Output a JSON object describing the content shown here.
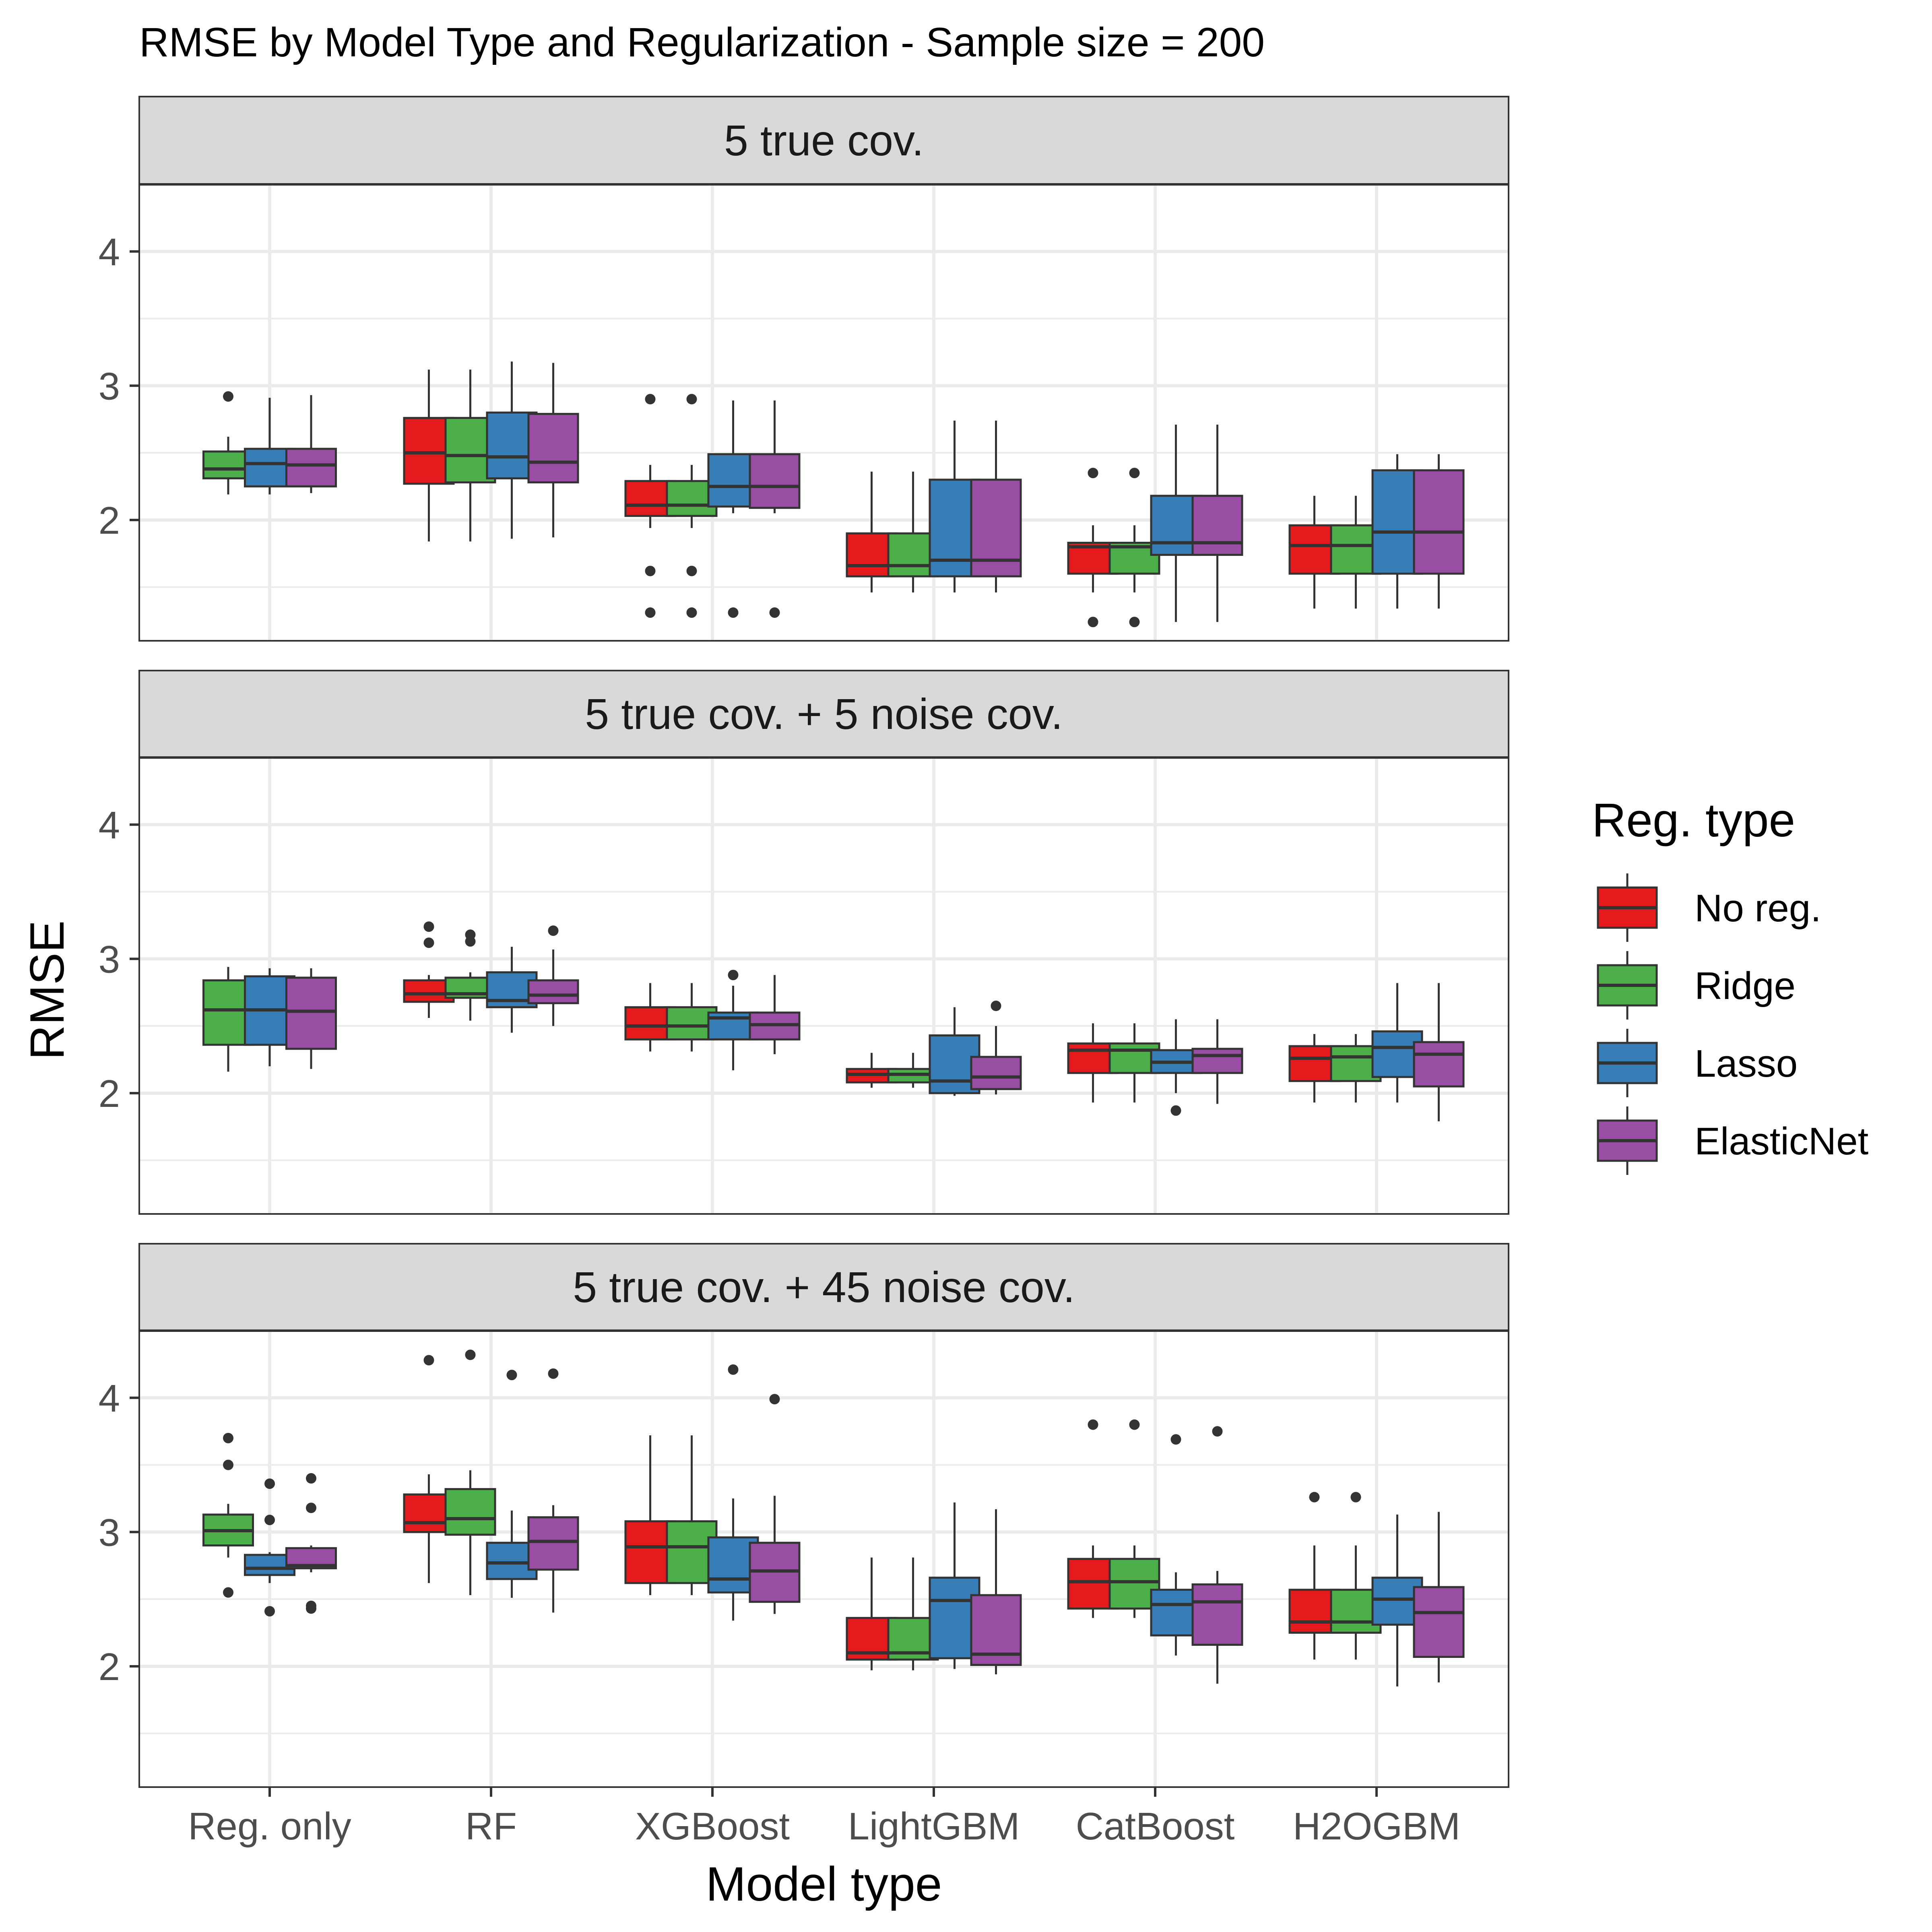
{
  "chart_data": {
    "type": "boxplot",
    "title": "RMSE by Model Type and Regularization - Sample size = 200",
    "xlabel": "Model type",
    "ylabel": "RMSE",
    "ylim": [
      1.1,
      4.5
    ],
    "yticks": [
      2,
      3,
      4
    ],
    "grid": true,
    "legend": {
      "title": "Reg. type",
      "placement": "right",
      "items": [
        {
          "label": "No reg.",
          "color": "#e41a1c"
        },
        {
          "label": "Ridge",
          "color": "#4daf4a"
        },
        {
          "label": "Lasso",
          "color": "#377eb8"
        },
        {
          "label": "ElasticNet",
          "color": "#984ea3"
        }
      ]
    },
    "categories": [
      "Reg. only",
      "RF",
      "XGBoost",
      "LightGBM",
      "CatBoost",
      "H2OGBM"
    ],
    "panels": [
      {
        "label": "5 true cov.",
        "boxes": [
          {
            "model": "Reg. only",
            "reg": "Ridge",
            "lower": 2.19,
            "q1": 2.31,
            "median": 2.38,
            "q3": 2.51,
            "upper": 2.62,
            "outliers": [
              2.92
            ]
          },
          {
            "model": "Reg. only",
            "reg": "Lasso",
            "lower": 2.19,
            "q1": 2.25,
            "median": 2.42,
            "q3": 2.53,
            "upper": 2.91,
            "outliers": []
          },
          {
            "model": "Reg. only",
            "reg": "ElasticNet",
            "lower": 2.2,
            "q1": 2.25,
            "median": 2.41,
            "q3": 2.53,
            "upper": 2.93,
            "outliers": []
          },
          {
            "model": "RF",
            "reg": "No reg.",
            "lower": 1.84,
            "q1": 2.27,
            "median": 2.5,
            "q3": 2.76,
            "upper": 3.12,
            "outliers": []
          },
          {
            "model": "RF",
            "reg": "Ridge",
            "lower": 1.84,
            "q1": 2.28,
            "median": 2.48,
            "q3": 2.76,
            "upper": 3.12,
            "outliers": []
          },
          {
            "model": "RF",
            "reg": "Lasso",
            "lower": 1.86,
            "q1": 2.31,
            "median": 2.47,
            "q3": 2.8,
            "upper": 3.18,
            "outliers": []
          },
          {
            "model": "RF",
            "reg": "ElasticNet",
            "lower": 1.87,
            "q1": 2.28,
            "median": 2.43,
            "q3": 2.79,
            "upper": 3.17,
            "outliers": []
          },
          {
            "model": "XGBoost",
            "reg": "No reg.",
            "lower": 1.94,
            "q1": 2.03,
            "median": 2.11,
            "q3": 2.29,
            "upper": 2.41,
            "outliers": [
              2.9,
              1.62,
              1.31
            ]
          },
          {
            "model": "XGBoost",
            "reg": "Ridge",
            "lower": 1.94,
            "q1": 2.03,
            "median": 2.11,
            "q3": 2.29,
            "upper": 2.41,
            "outliers": [
              2.9,
              1.62,
              1.31
            ]
          },
          {
            "model": "XGBoost",
            "reg": "Lasso",
            "lower": 2.05,
            "q1": 2.1,
            "median": 2.25,
            "q3": 2.49,
            "upper": 2.89,
            "outliers": [
              1.31
            ]
          },
          {
            "model": "XGBoost",
            "reg": "ElasticNet",
            "lower": 2.05,
            "q1": 2.09,
            "median": 2.25,
            "q3": 2.49,
            "upper": 2.89,
            "outliers": [
              1.31
            ]
          },
          {
            "model": "LightGBM",
            "reg": "No reg.",
            "lower": 1.46,
            "q1": 1.58,
            "median": 1.66,
            "q3": 1.9,
            "upper": 2.36,
            "outliers": []
          },
          {
            "model": "LightGBM",
            "reg": "Ridge",
            "lower": 1.46,
            "q1": 1.58,
            "median": 1.66,
            "q3": 1.9,
            "upper": 2.36,
            "outliers": []
          },
          {
            "model": "LightGBM",
            "reg": "Lasso",
            "lower": 1.46,
            "q1": 1.58,
            "median": 1.7,
            "q3": 2.3,
            "upper": 2.74,
            "outliers": []
          },
          {
            "model": "LightGBM",
            "reg": "ElasticNet",
            "lower": 1.46,
            "q1": 1.58,
            "median": 1.7,
            "q3": 2.3,
            "upper": 2.74,
            "outliers": []
          },
          {
            "model": "CatBoost",
            "reg": "No reg.",
            "lower": 1.46,
            "q1": 1.6,
            "median": 1.8,
            "q3": 1.83,
            "upper": 1.96,
            "outliers": [
              2.35,
              1.24
            ]
          },
          {
            "model": "CatBoost",
            "reg": "Ridge",
            "lower": 1.46,
            "q1": 1.6,
            "median": 1.8,
            "q3": 1.83,
            "upper": 1.96,
            "outliers": [
              2.35,
              1.24
            ]
          },
          {
            "model": "CatBoost",
            "reg": "Lasso",
            "lower": 1.24,
            "q1": 1.74,
            "median": 1.83,
            "q3": 2.18,
            "upper": 2.71,
            "outliers": []
          },
          {
            "model": "CatBoost",
            "reg": "ElasticNet",
            "lower": 1.24,
            "q1": 1.74,
            "median": 1.83,
            "q3": 2.18,
            "upper": 2.71,
            "outliers": []
          },
          {
            "model": "H2OGBM",
            "reg": "No reg.",
            "lower": 1.34,
            "q1": 1.6,
            "median": 1.81,
            "q3": 1.96,
            "upper": 2.18,
            "outliers": []
          },
          {
            "model": "H2OGBM",
            "reg": "Ridge",
            "lower": 1.34,
            "q1": 1.6,
            "median": 1.81,
            "q3": 1.96,
            "upper": 2.18,
            "outliers": []
          },
          {
            "model": "H2OGBM",
            "reg": "Lasso",
            "lower": 1.34,
            "q1": 1.6,
            "median": 1.91,
            "q3": 2.37,
            "upper": 2.49,
            "outliers": []
          },
          {
            "model": "H2OGBM",
            "reg": "ElasticNet",
            "lower": 1.34,
            "q1": 1.6,
            "median": 1.91,
            "q3": 2.37,
            "upper": 2.49,
            "outliers": []
          }
        ]
      },
      {
        "label": "5 true cov. + 5 noise cov.",
        "boxes": [
          {
            "model": "Reg. only",
            "reg": "Ridge",
            "lower": 2.16,
            "q1": 2.36,
            "median": 2.62,
            "q3": 2.84,
            "upper": 2.94,
            "outliers": []
          },
          {
            "model": "Reg. only",
            "reg": "Lasso",
            "lower": 2.2,
            "q1": 2.36,
            "median": 2.62,
            "q3": 2.87,
            "upper": 2.93,
            "outliers": []
          },
          {
            "model": "Reg. only",
            "reg": "ElasticNet",
            "lower": 2.18,
            "q1": 2.33,
            "median": 2.61,
            "q3": 2.86,
            "upper": 2.93,
            "outliers": []
          },
          {
            "model": "RF",
            "reg": "No reg.",
            "lower": 2.56,
            "q1": 2.68,
            "median": 2.74,
            "q3": 2.84,
            "upper": 2.88,
            "outliers": [
              3.24,
              3.12
            ]
          },
          {
            "model": "RF",
            "reg": "Ridge",
            "lower": 2.54,
            "q1": 2.71,
            "median": 2.74,
            "q3": 2.86,
            "upper": 2.9,
            "outliers": [
              3.18,
              3.13
            ]
          },
          {
            "model": "RF",
            "reg": "Lasso",
            "lower": 2.45,
            "q1": 2.64,
            "median": 2.69,
            "q3": 2.9,
            "upper": 3.09,
            "outliers": []
          },
          {
            "model": "RF",
            "reg": "ElasticNet",
            "lower": 2.5,
            "q1": 2.67,
            "median": 2.73,
            "q3": 2.84,
            "upper": 3.07,
            "outliers": [
              3.21
            ]
          },
          {
            "model": "XGBoost",
            "reg": "No reg.",
            "lower": 2.31,
            "q1": 2.4,
            "median": 2.5,
            "q3": 2.64,
            "upper": 2.82,
            "outliers": []
          },
          {
            "model": "XGBoost",
            "reg": "Ridge",
            "lower": 2.31,
            "q1": 2.4,
            "median": 2.5,
            "q3": 2.64,
            "upper": 2.82,
            "outliers": []
          },
          {
            "model": "XGBoost",
            "reg": "Lasso",
            "lower": 2.17,
            "q1": 2.4,
            "median": 2.56,
            "q3": 2.6,
            "upper": 2.8,
            "outliers": [
              2.88
            ]
          },
          {
            "model": "XGBoost",
            "reg": "ElasticNet",
            "lower": 2.29,
            "q1": 2.4,
            "median": 2.51,
            "q3": 2.6,
            "upper": 2.88,
            "outliers": []
          },
          {
            "model": "LightGBM",
            "reg": "No reg.",
            "lower": 2.04,
            "q1": 2.08,
            "median": 2.14,
            "q3": 2.18,
            "upper": 2.3,
            "outliers": []
          },
          {
            "model": "LightGBM",
            "reg": "Ridge",
            "lower": 2.04,
            "q1": 2.08,
            "median": 2.14,
            "q3": 2.18,
            "upper": 2.3,
            "outliers": []
          },
          {
            "model": "LightGBM",
            "reg": "Lasso",
            "lower": 1.98,
            "q1": 2.0,
            "median": 2.09,
            "q3": 2.43,
            "upper": 2.64,
            "outliers": []
          },
          {
            "model": "LightGBM",
            "reg": "ElasticNet",
            "lower": 1.99,
            "q1": 2.03,
            "median": 2.12,
            "q3": 2.27,
            "upper": 2.5,
            "outliers": [
              2.65
            ]
          },
          {
            "model": "CatBoost",
            "reg": "No reg.",
            "lower": 1.93,
            "q1": 2.15,
            "median": 2.32,
            "q3": 2.37,
            "upper": 2.52,
            "outliers": []
          },
          {
            "model": "CatBoost",
            "reg": "Ridge",
            "lower": 1.93,
            "q1": 2.15,
            "median": 2.32,
            "q3": 2.37,
            "upper": 2.52,
            "outliers": []
          },
          {
            "model": "CatBoost",
            "reg": "Lasso",
            "lower": 2.0,
            "q1": 2.15,
            "median": 2.23,
            "q3": 2.32,
            "upper": 2.55,
            "outliers": [
              1.87
            ]
          },
          {
            "model": "CatBoost",
            "reg": "ElasticNet",
            "lower": 1.92,
            "q1": 2.15,
            "median": 2.28,
            "q3": 2.33,
            "upper": 2.55,
            "outliers": []
          },
          {
            "model": "H2OGBM",
            "reg": "No reg.",
            "lower": 1.93,
            "q1": 2.09,
            "median": 2.26,
            "q3": 2.35,
            "upper": 2.44,
            "outliers": []
          },
          {
            "model": "H2OGBM",
            "reg": "Ridge",
            "lower": 1.93,
            "q1": 2.09,
            "median": 2.27,
            "q3": 2.35,
            "upper": 2.44,
            "outliers": []
          },
          {
            "model": "H2OGBM",
            "reg": "Lasso",
            "lower": 1.93,
            "q1": 2.12,
            "median": 2.34,
            "q3": 2.46,
            "upper": 2.82,
            "outliers": []
          },
          {
            "model": "H2OGBM",
            "reg": "ElasticNet",
            "lower": 1.79,
            "q1": 2.05,
            "median": 2.29,
            "q3": 2.38,
            "upper": 2.82,
            "outliers": []
          }
        ]
      },
      {
        "label": "5 true cov. + 45 noise cov.",
        "boxes": [
          {
            "model": "Reg. only",
            "reg": "Ridge",
            "lower": 2.81,
            "q1": 2.9,
            "median": 3.01,
            "q3": 3.13,
            "upper": 3.21,
            "outliers": [
              3.7,
              3.5,
              2.55
            ]
          },
          {
            "model": "Reg. only",
            "reg": "Lasso",
            "lower": 2.62,
            "q1": 2.68,
            "median": 2.73,
            "q3": 2.83,
            "upper": 2.85,
            "outliers": [
              3.36,
              3.09,
              2.41
            ]
          },
          {
            "model": "Reg. only",
            "reg": "ElasticNet",
            "lower": 2.7,
            "q1": 2.73,
            "median": 2.75,
            "q3": 2.88,
            "upper": 2.9,
            "outliers": [
              3.4,
              3.18,
              2.45,
              2.43
            ]
          },
          {
            "model": "RF",
            "reg": "No reg.",
            "lower": 2.62,
            "q1": 3.0,
            "median": 3.07,
            "q3": 3.28,
            "upper": 3.43,
            "outliers": [
              4.28
            ]
          },
          {
            "model": "RF",
            "reg": "Ridge",
            "lower": 2.53,
            "q1": 2.98,
            "median": 3.1,
            "q3": 3.32,
            "upper": 3.46,
            "outliers": [
              4.32
            ]
          },
          {
            "model": "RF",
            "reg": "Lasso",
            "lower": 2.51,
            "q1": 2.65,
            "median": 2.77,
            "q3": 2.92,
            "upper": 3.16,
            "outliers": [
              4.17
            ]
          },
          {
            "model": "RF",
            "reg": "ElasticNet",
            "lower": 2.4,
            "q1": 2.72,
            "median": 2.93,
            "q3": 3.11,
            "upper": 3.2,
            "outliers": [
              4.18
            ]
          },
          {
            "model": "XGBoost",
            "reg": "No reg.",
            "lower": 2.53,
            "q1": 2.62,
            "median": 2.89,
            "q3": 3.08,
            "upper": 3.72,
            "outliers": []
          },
          {
            "model": "XGBoost",
            "reg": "Ridge",
            "lower": 2.53,
            "q1": 2.62,
            "median": 2.89,
            "q3": 3.08,
            "upper": 3.72,
            "outliers": []
          },
          {
            "model": "XGBoost",
            "reg": "Lasso",
            "lower": 2.34,
            "q1": 2.55,
            "median": 2.65,
            "q3": 2.96,
            "upper": 3.25,
            "outliers": [
              4.21
            ]
          },
          {
            "model": "XGBoost",
            "reg": "ElasticNet",
            "lower": 2.39,
            "q1": 2.48,
            "median": 2.71,
            "q3": 2.92,
            "upper": 3.27,
            "outliers": [
              3.99
            ]
          },
          {
            "model": "LightGBM",
            "reg": "No reg.",
            "lower": 1.97,
            "q1": 2.05,
            "median": 2.1,
            "q3": 2.36,
            "upper": 2.81,
            "outliers": []
          },
          {
            "model": "LightGBM",
            "reg": "Ridge",
            "lower": 1.97,
            "q1": 2.05,
            "median": 2.1,
            "q3": 2.36,
            "upper": 2.81,
            "outliers": []
          },
          {
            "model": "LightGBM",
            "reg": "Lasso",
            "lower": 1.98,
            "q1": 2.06,
            "median": 2.49,
            "q3": 2.66,
            "upper": 3.22,
            "outliers": []
          },
          {
            "model": "LightGBM",
            "reg": "ElasticNet",
            "lower": 1.94,
            "q1": 2.01,
            "median": 2.09,
            "q3": 2.53,
            "upper": 3.17,
            "outliers": []
          },
          {
            "model": "CatBoost",
            "reg": "No reg.",
            "lower": 2.36,
            "q1": 2.43,
            "median": 2.63,
            "q3": 2.8,
            "upper": 2.9,
            "outliers": [
              3.8
            ]
          },
          {
            "model": "CatBoost",
            "reg": "Ridge",
            "lower": 2.36,
            "q1": 2.43,
            "median": 2.63,
            "q3": 2.8,
            "upper": 2.9,
            "outliers": [
              3.8
            ]
          },
          {
            "model": "CatBoost",
            "reg": "Lasso",
            "lower": 2.08,
            "q1": 2.23,
            "median": 2.46,
            "q3": 2.57,
            "upper": 2.7,
            "outliers": [
              3.69
            ]
          },
          {
            "model": "CatBoost",
            "reg": "ElasticNet",
            "lower": 1.87,
            "q1": 2.16,
            "median": 2.48,
            "q3": 2.61,
            "upper": 2.71,
            "outliers": [
              3.75
            ]
          },
          {
            "model": "H2OGBM",
            "reg": "No reg.",
            "lower": 2.05,
            "q1": 2.25,
            "median": 2.33,
            "q3": 2.57,
            "upper": 2.9,
            "outliers": [
              3.26
            ]
          },
          {
            "model": "H2OGBM",
            "reg": "Ridge",
            "lower": 2.05,
            "q1": 2.25,
            "median": 2.33,
            "q3": 2.57,
            "upper": 2.9,
            "outliers": [
              3.26
            ]
          },
          {
            "model": "H2OGBM",
            "reg": "Lasso",
            "lower": 1.85,
            "q1": 2.31,
            "median": 2.5,
            "q3": 2.66,
            "upper": 3.13,
            "outliers": []
          },
          {
            "model": "H2OGBM",
            "reg": "ElasticNet",
            "lower": 1.88,
            "q1": 2.07,
            "median": 2.4,
            "q3": 2.59,
            "upper": 3.15,
            "outliers": []
          }
        ]
      }
    ]
  }
}
